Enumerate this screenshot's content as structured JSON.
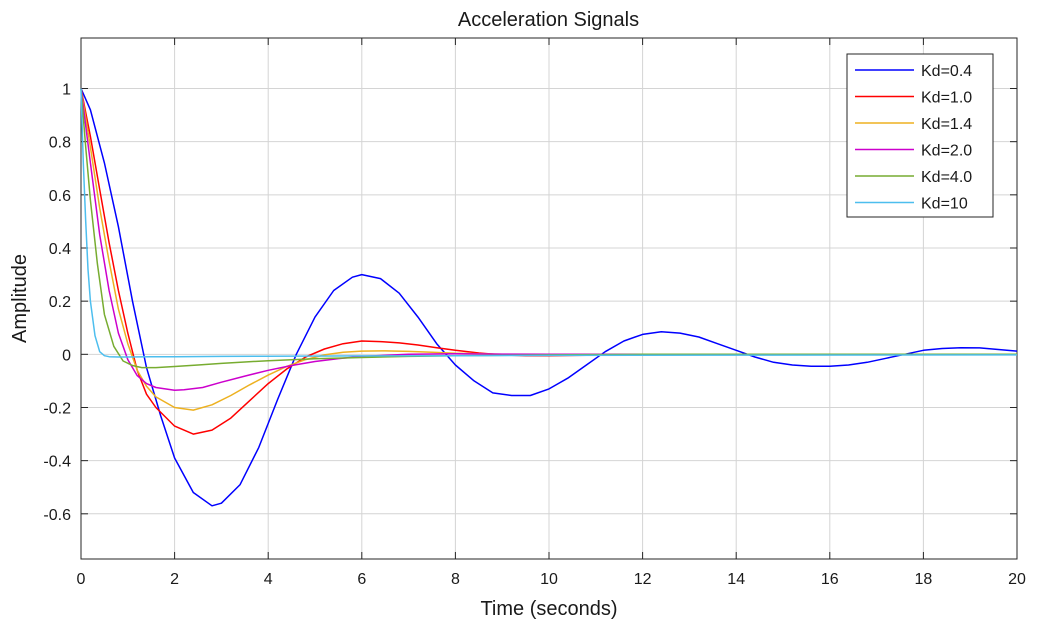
{
  "chart_data": {
    "type": "line",
    "title": "Acceleration Signals",
    "xlabel": "Time (seconds)",
    "ylabel": "Amplitude",
    "xlim": [
      0,
      20
    ],
    "ylim": [
      -0.77,
      1.19
    ],
    "xticks": [
      0,
      2,
      4,
      6,
      8,
      10,
      12,
      14,
      16,
      18,
      20
    ],
    "xtick_labels": [
      "0",
      "2",
      "4",
      "6",
      "8",
      "10",
      "12",
      "14",
      "16",
      "18",
      "20"
    ],
    "yticks": [
      -0.6,
      -0.4,
      -0.2,
      0,
      0.2,
      0.4,
      0.6,
      0.8,
      1
    ],
    "ytick_labels": [
      "-0.6",
      "-0.4",
      "-0.2",
      "0",
      "0.2",
      "0.4",
      "0.6",
      "0.8",
      "1"
    ],
    "grid": true,
    "legend_position": "top-right",
    "series": [
      {
        "name": "Kd=0.4",
        "color": "#0000ff",
        "x": [
          0,
          0.2,
          0.5,
          0.8,
          1.1,
          1.4,
          1.7,
          2.0,
          2.4,
          2.8,
          3.0,
          3.4,
          3.8,
          4.2,
          4.6,
          5.0,
          5.4,
          5.8,
          6.0,
          6.4,
          6.8,
          7.2,
          7.6,
          8.0,
          8.4,
          8.8,
          9.2,
          9.6,
          10.0,
          10.4,
          10.8,
          11.2,
          11.6,
          12.0,
          12.4,
          12.8,
          13.2,
          13.6,
          14.0,
          14.4,
          14.8,
          15.2,
          15.6,
          16.0,
          16.4,
          16.8,
          17.2,
          17.6,
          18.0,
          18.4,
          18.8,
          19.2,
          19.6,
          20.0
        ],
        "y": [
          1.0,
          0.92,
          0.72,
          0.48,
          0.2,
          -0.05,
          -0.23,
          -0.39,
          -0.52,
          -0.57,
          -0.56,
          -0.49,
          -0.35,
          -0.17,
          0.0,
          0.14,
          0.24,
          0.29,
          0.3,
          0.285,
          0.23,
          0.14,
          0.04,
          -0.04,
          -0.1,
          -0.145,
          -0.155,
          -0.155,
          -0.13,
          -0.09,
          -0.04,
          0.01,
          0.05,
          0.075,
          0.085,
          0.08,
          0.065,
          0.04,
          0.015,
          -0.01,
          -0.03,
          -0.04,
          -0.045,
          -0.045,
          -0.04,
          -0.03,
          -0.015,
          0.0,
          0.015,
          0.022,
          0.025,
          0.024,
          0.018,
          0.012
        ]
      },
      {
        "name": "Kd=1.0",
        "color": "#ff0000",
        "x": [
          0,
          0.2,
          0.4,
          0.6,
          0.8,
          1.0,
          1.2,
          1.4,
          1.6,
          2.0,
          2.4,
          2.8,
          3.2,
          3.6,
          4.0,
          4.4,
          4.8,
          5.2,
          5.6,
          6.0,
          6.4,
          6.8,
          7.2,
          7.6,
          8.0,
          8.5,
          9.0,
          9.5,
          10.0,
          11.0,
          12.0,
          14.0,
          16.0,
          20.0
        ],
        "y": [
          1.0,
          0.82,
          0.62,
          0.42,
          0.24,
          0.08,
          -0.06,
          -0.15,
          -0.2,
          -0.27,
          -0.3,
          -0.285,
          -0.24,
          -0.175,
          -0.11,
          -0.055,
          -0.01,
          0.02,
          0.04,
          0.05,
          0.048,
          0.043,
          0.035,
          0.025,
          0.015,
          0.005,
          -0.002,
          -0.005,
          -0.005,
          -0.003,
          0.0,
          0.0,
          0.0,
          0.0
        ]
      },
      {
        "name": "Kd=1.4",
        "color": "#edb120",
        "x": [
          0,
          0.2,
          0.4,
          0.6,
          0.8,
          1.0,
          1.2,
          1.4,
          1.6,
          2.0,
          2.4,
          2.8,
          3.2,
          3.6,
          4.0,
          4.4,
          4.8,
          5.2,
          5.6,
          6.0,
          6.5,
          7.0,
          7.5,
          8.0,
          9.0,
          10.0,
          12.0,
          14.0,
          20.0
        ],
        "y": [
          1.0,
          0.78,
          0.55,
          0.35,
          0.17,
          0.04,
          -0.06,
          -0.12,
          -0.16,
          -0.2,
          -0.21,
          -0.19,
          -0.155,
          -0.115,
          -0.078,
          -0.045,
          -0.02,
          -0.002,
          0.008,
          0.012,
          0.013,
          0.011,
          0.008,
          0.004,
          0.0,
          -0.002,
          0.0,
          0.0,
          0.0
        ]
      },
      {
        "name": "Kd=2.0",
        "color": "#cc00cc",
        "x": [
          0,
          0.2,
          0.4,
          0.6,
          0.8,
          1.0,
          1.2,
          1.4,
          1.6,
          1.8,
          2.0,
          2.2,
          2.6,
          3.0,
          3.5,
          4.0,
          4.5,
          5.0,
          5.5,
          6.0,
          7.0,
          8.0,
          9.0,
          10.0,
          12.0,
          14.0,
          20.0
        ],
        "y": [
          1.0,
          0.72,
          0.45,
          0.24,
          0.08,
          -0.02,
          -0.08,
          -0.11,
          -0.125,
          -0.13,
          -0.135,
          -0.133,
          -0.125,
          -0.105,
          -0.082,
          -0.06,
          -0.042,
          -0.027,
          -0.016,
          -0.008,
          0.0,
          0.002,
          0.001,
          0.0,
          0.0,
          0.0,
          0.0
        ]
      },
      {
        "name": "Kd=4.0",
        "color": "#77ac30",
        "x": [
          0,
          0.1,
          0.2,
          0.35,
          0.5,
          0.7,
          0.9,
          1.1,
          1.3,
          1.6,
          2.0,
          2.5,
          3.0,
          3.5,
          4.0,
          5.0,
          6.0,
          7.0,
          8.0,
          10.0,
          12.0,
          14.0,
          20.0
        ],
        "y": [
          1.0,
          0.78,
          0.58,
          0.34,
          0.15,
          0.03,
          -0.025,
          -0.042,
          -0.05,
          -0.05,
          -0.046,
          -0.04,
          -0.034,
          -0.029,
          -0.024,
          -0.017,
          -0.012,
          -0.008,
          -0.005,
          -0.002,
          0.0,
          0.0,
          0.0
        ]
      },
      {
        "name": "Kd=10",
        "color": "#4dbeee",
        "x": [
          0,
          0.05,
          0.1,
          0.15,
          0.2,
          0.3,
          0.4,
          0.5,
          0.6,
          0.8,
          1.0,
          1.5,
          2.0,
          3.0,
          4.0,
          6.0,
          8.0,
          10.0,
          14.0,
          20.0
        ],
        "y": [
          1.0,
          0.72,
          0.5,
          0.32,
          0.2,
          0.07,
          0.01,
          -0.005,
          -0.009,
          -0.01,
          -0.01,
          -0.0095,
          -0.009,
          -0.008,
          -0.007,
          -0.006,
          -0.005,
          -0.004,
          -0.003,
          -0.002
        ]
      }
    ]
  }
}
